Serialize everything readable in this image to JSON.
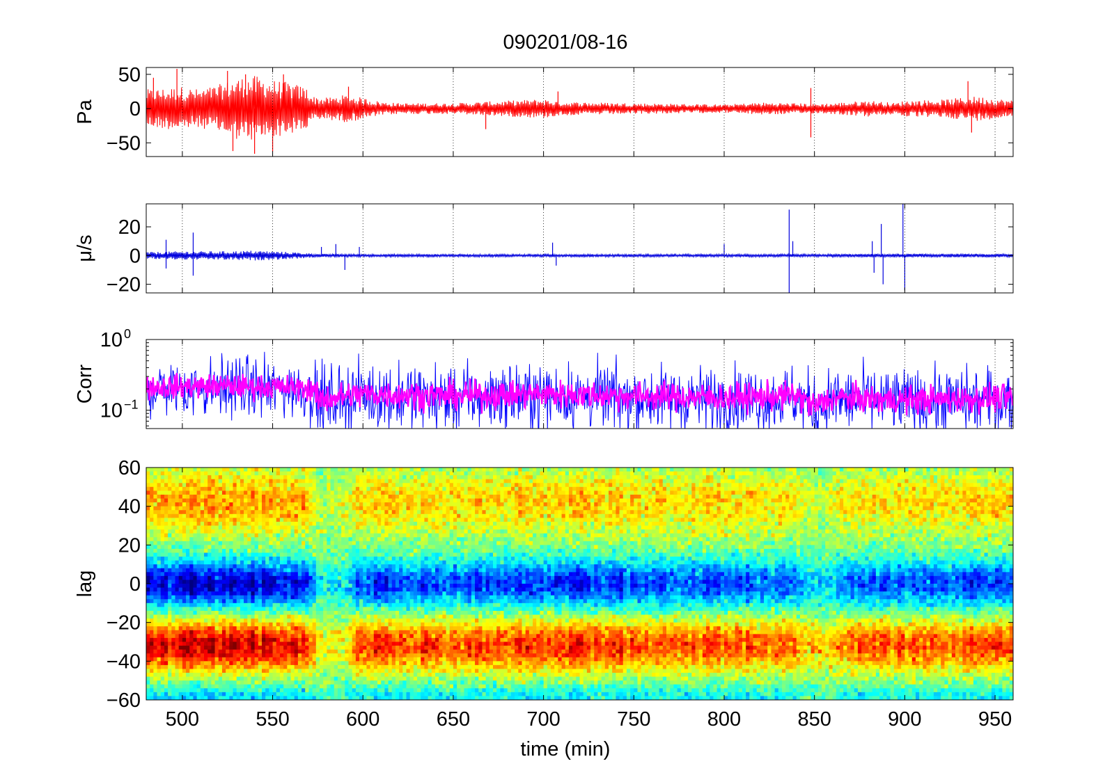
{
  "figure": {
    "title": "090201/08-16",
    "xlabel": "time (min)"
  },
  "chart_data": [
    {
      "type": "line",
      "ylabel": "Pa",
      "xlim": [
        480,
        960
      ],
      "ylim": [
        -70,
        60
      ],
      "xticks": [
        500,
        550,
        600,
        650,
        700,
        750,
        800,
        850,
        900,
        950
      ],
      "yticks": [
        {
          "value": 50,
          "label": "50"
        },
        {
          "value": 0,
          "label": "0"
        },
        {
          "value": -50,
          "label": "−50"
        }
      ],
      "grid": "x-dotted",
      "series": [
        {
          "color": "#ff0000",
          "envelope": {
            "x": [
              480,
              500,
              510,
              520,
              530,
              540,
              550,
              560,
              570,
              572,
              580,
              590,
              600,
              610,
              620,
              650,
              700,
              710,
              750,
              800,
              820,
              840,
              850,
              860,
              880,
              895,
              900,
              920,
              940,
              960
            ],
            "amplitude": [
              28,
              32,
              28,
              35,
              45,
              48,
              42,
              38,
              30,
              18,
              16,
              20,
              16,
              10,
              8,
              8,
              14,
              10,
              8,
              6,
              9,
              8,
              7,
              8,
              12,
              8,
              12,
              13,
              18,
              12
            ]
          },
          "spikes": [
            {
              "x": 484,
              "y": 45
            },
            {
              "x": 497,
              "y": 58
            },
            {
              "x": 525,
              "y": 55
            },
            {
              "x": 528,
              "y": -62
            },
            {
              "x": 535,
              "y": 50
            },
            {
              "x": 540,
              "y": -66
            },
            {
              "x": 550,
              "y": -63
            },
            {
              "x": 556,
              "y": 50
            },
            {
              "x": 592,
              "y": 32
            },
            {
              "x": 668,
              "y": -30
            },
            {
              "x": 708,
              "y": 25
            },
            {
              "x": 848,
              "y": -42
            },
            {
              "x": 848,
              "y": 30
            },
            {
              "x": 935,
              "y": 40
            },
            {
              "x": 937,
              "y": -35
            }
          ]
        }
      ]
    },
    {
      "type": "line",
      "ylabel": "μ/s",
      "xlim": [
        480,
        960
      ],
      "ylim": [
        -26,
        36
      ],
      "xticks": [
        500,
        550,
        600,
        650,
        700,
        750,
        800,
        850,
        900,
        950
      ],
      "yticks": [
        {
          "value": 20,
          "label": "20"
        },
        {
          "value": 0,
          "label": "0"
        },
        {
          "value": -20,
          "label": "−20"
        }
      ],
      "grid": "x-dotted",
      "series": [
        {
          "color": "#0000dd",
          "envelope": {
            "x": [
              480,
              500,
              520,
              540,
              560,
              575,
              600,
              650,
              700,
              750,
              800,
              850,
              880,
              900,
              920,
              960
            ],
            "amplitude": [
              2.5,
              3,
              3,
              3.5,
              2.5,
              1.2,
              1,
              1,
              1,
              1,
              1,
              1,
              1.2,
              1.3,
              1.3,
              1.2
            ]
          },
          "spikes": [
            {
              "x": 491,
              "y": 11
            },
            {
              "x": 491,
              "y": -9
            },
            {
              "x": 506,
              "y": 16
            },
            {
              "x": 506,
              "y": -14
            },
            {
              "x": 577,
              "y": 6
            },
            {
              "x": 585,
              "y": 8
            },
            {
              "x": 590,
              "y": -10
            },
            {
              "x": 598,
              "y": 6
            },
            {
              "x": 705,
              "y": 9
            },
            {
              "x": 707,
              "y": -7
            },
            {
              "x": 800,
              "y": 8
            },
            {
              "x": 836,
              "y": 32
            },
            {
              "x": 836,
              "y": -26
            },
            {
              "x": 838,
              "y": 10
            },
            {
              "x": 882,
              "y": 10
            },
            {
              "x": 883,
              "y": -12
            },
            {
              "x": 887,
              "y": 22
            },
            {
              "x": 888,
              "y": -20
            },
            {
              "x": 899,
              "y": 36
            },
            {
              "x": 900,
              "y": -24
            }
          ]
        }
      ]
    },
    {
      "type": "line",
      "ylabel": "Corr",
      "yscale": "log",
      "xlim": [
        480,
        960
      ],
      "ylim": [
        0.055,
        1
      ],
      "xticks": [
        500,
        550,
        600,
        650,
        700,
        750,
        800,
        850,
        900,
        950
      ],
      "yticks": [
        {
          "value": 1,
          "label": "10",
          "exp": "0"
        },
        {
          "value": 0.1,
          "label": "10",
          "exp": "−1"
        }
      ],
      "grid": "x-dotted",
      "series": [
        {
          "color": "#0000ff",
          "x": [
            480,
            520,
            560,
            572,
            575,
            600,
            650,
            700,
            750,
            800,
            840,
            850,
            860,
            900,
            960
          ],
          "median": [
            0.2,
            0.21,
            0.2,
            0.19,
            0.13,
            0.16,
            0.15,
            0.16,
            0.15,
            0.14,
            0.15,
            0.1,
            0.14,
            0.13,
            0.14
          ],
          "spread": [
            0.3,
            0.3,
            0.3,
            0.3,
            0.35,
            0.33,
            0.33,
            0.33,
            0.33,
            0.33,
            0.33,
            0.35,
            0.33,
            0.33,
            0.33
          ]
        },
        {
          "color": "#ff00ff",
          "x": [
            480,
            520,
            560,
            572,
            575,
            600,
            650,
            700,
            750,
            800,
            840,
            850,
            860,
            900,
            960
          ],
          "median": [
            0.21,
            0.22,
            0.21,
            0.2,
            0.14,
            0.17,
            0.16,
            0.17,
            0.16,
            0.15,
            0.16,
            0.11,
            0.15,
            0.14,
            0.15
          ],
          "spread": [
            0.12,
            0.12,
            0.12,
            0.12,
            0.15,
            0.14,
            0.14,
            0.14,
            0.14,
            0.14,
            0.14,
            0.15,
            0.14,
            0.14,
            0.14
          ]
        }
      ]
    },
    {
      "type": "heatmap",
      "ylabel": "lag",
      "xlim": [
        480,
        960
      ],
      "ylim": [
        -60,
        60
      ],
      "xticks": [
        500,
        550,
        600,
        650,
        700,
        750,
        800,
        850,
        900,
        950
      ],
      "yticks": [
        {
          "value": 60,
          "label": "60"
        },
        {
          "value": 40,
          "label": "40"
        },
        {
          "value": 20,
          "label": "20"
        },
        {
          "value": 0,
          "label": "0"
        },
        {
          "value": -20,
          "label": "−20"
        },
        {
          "value": -40,
          "label": "−40"
        },
        {
          "value": -60,
          "label": "−60"
        }
      ],
      "xticklabels": [
        "500",
        "550",
        "600",
        "650",
        "700",
        "750",
        "800",
        "850",
        "900",
        "950"
      ],
      "colormap": "jet",
      "description_bands": {
        "low_lag_center": 0,
        "high_lag_center": -32,
        "upper_band_center": 42
      },
      "strength_by_time": {
        "x": [
          480,
          530,
          570,
          575,
          590,
          600,
          650,
          700,
          750,
          800,
          840,
          855,
          870,
          900,
          960
        ],
        "value": [
          0.95,
          1.0,
          0.95,
          0.25,
          0.35,
          0.8,
          0.75,
          0.85,
          0.75,
          0.75,
          0.6,
          0.35,
          0.65,
          0.7,
          0.75
        ]
      }
    }
  ]
}
